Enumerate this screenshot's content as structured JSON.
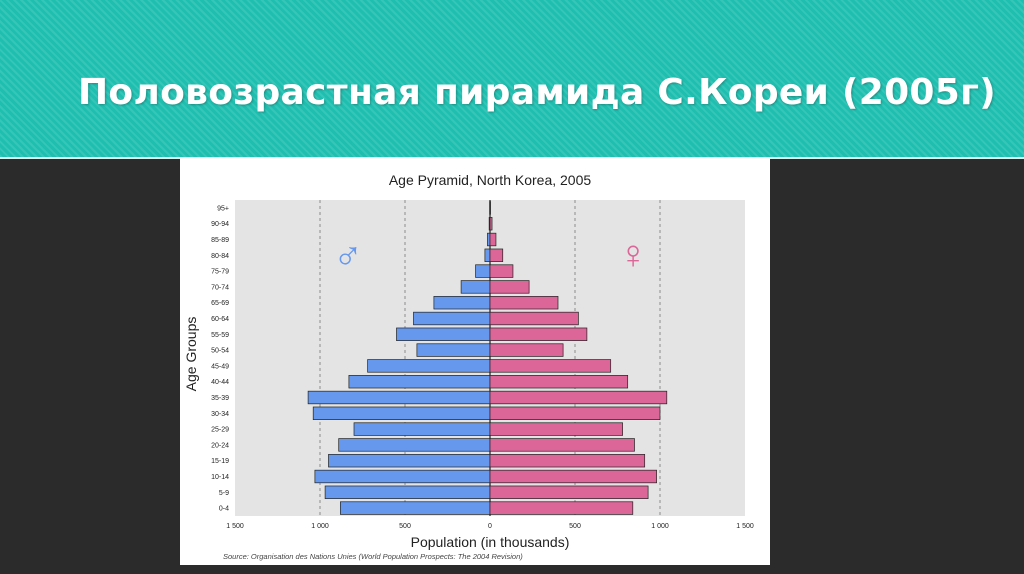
{
  "slide": {
    "title": "Половозрастная пирамида С.Кореи (2005г)",
    "header_color": "#1fbfb0",
    "background_color": "#2b2b2b"
  },
  "chart_data": {
    "type": "bar",
    "orientation": "horizontal-pyramid",
    "title": "Age Pyramid, North Korea, 2005",
    "xlabel": "Population (in thousands)",
    "ylabel": "Age Groups",
    "xlim": [
      -1500,
      1500
    ],
    "x_ticks": [
      -1500,
      -1000,
      -500,
      0,
      500,
      1000,
      1500
    ],
    "x_tick_labels": [
      "1 500",
      "1 000",
      "500",
      "0",
      "500",
      "1 000",
      "1 500"
    ],
    "categories": [
      "0-4",
      "5-9",
      "10-14",
      "15-19",
      "20-24",
      "25-29",
      "30-34",
      "35-39",
      "40-44",
      "45-49",
      "50-54",
      "55-59",
      "60-64",
      "65-69",
      "70-74",
      "75-79",
      "80-84",
      "85-89",
      "90-94",
      "95+"
    ],
    "series": [
      {
        "name": "♂",
        "color": "#6699ee",
        "values": [
          880,
          970,
          1030,
          950,
          890,
          800,
          1040,
          1070,
          830,
          720,
          430,
          550,
          450,
          330,
          170,
          85,
          30,
          15,
          5,
          2
        ]
      },
      {
        "name": "♀",
        "color": "#dd6699",
        "values": [
          840,
          930,
          980,
          910,
          850,
          780,
          1000,
          1040,
          810,
          710,
          430,
          570,
          520,
          400,
          230,
          135,
          75,
          35,
          12,
          3
        ]
      }
    ],
    "grid": true,
    "source": "Source: Organisation des Nations Unies (World Population Prospects: The 2004 Revision)"
  }
}
